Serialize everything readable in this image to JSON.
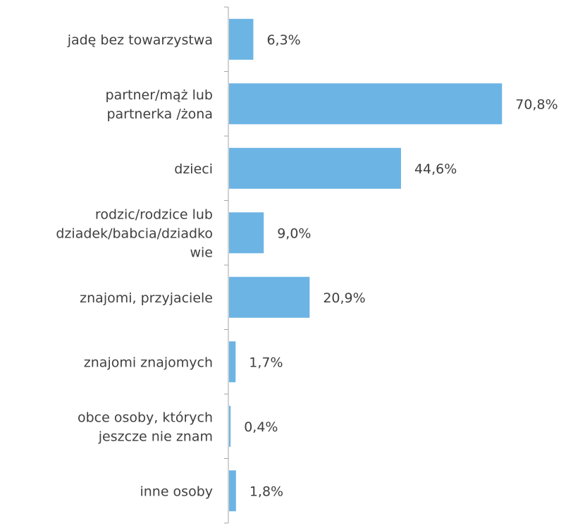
{
  "chart_data": {
    "type": "bar",
    "orientation": "horizontal",
    "categories": [
      [
        "jadę bez towarzystwa"
      ],
      [
        "partner/mąż lub",
        "partnerka /żona"
      ],
      [
        "dzieci"
      ],
      [
        "rodzic/rodzice lub",
        "dziadek/babcia/dziadko",
        "wie"
      ],
      [
        "znajomi, przyjaciele"
      ],
      [
        "znajomi znajomych"
      ],
      [
        "obce osoby, których",
        "jeszcze nie znam"
      ],
      [
        "inne osoby"
      ]
    ],
    "values": [
      6.3,
      70.8,
      44.6,
      9.0,
      20.9,
      1.7,
      0.4,
      1.8
    ],
    "value_labels": [
      "6,3%",
      "70,8%",
      "44,6%",
      "9,0%",
      "20,9%",
      "1,7%",
      "0,4%",
      "1,8%"
    ],
    "xlim": [
      0,
      100
    ],
    "grid": false,
    "legend": "none",
    "bar_color": "#6CB4E4",
    "axis_color": "#A6A6A6",
    "text_color": "#404040"
  }
}
